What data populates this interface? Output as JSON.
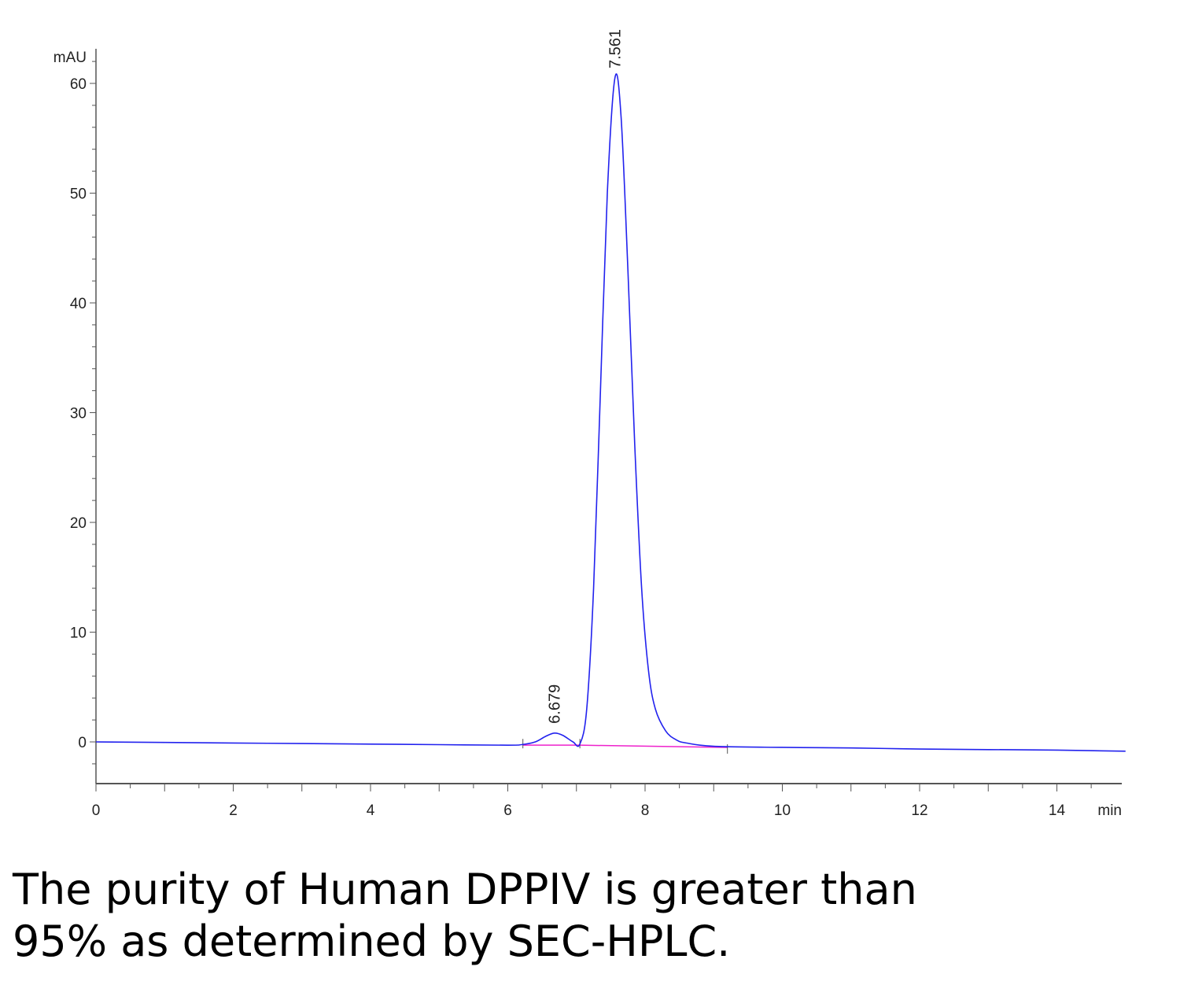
{
  "chart_data": {
    "type": "line",
    "xlabel": "min",
    "ylabel": "mAU",
    "xlim": [
      0,
      15
    ],
    "ylim": [
      -4,
      62
    ],
    "x_ticks": [
      "0",
      "2",
      "4",
      "6",
      "8",
      "10",
      "12",
      "14"
    ],
    "y_ticks": [
      "0",
      "10",
      "20",
      "30",
      "40",
      "50",
      "60"
    ],
    "grid": false,
    "colors": {
      "signal": "#2222ee",
      "baseline": "#ee22cc",
      "axis": "#555555"
    },
    "peaks": [
      {
        "label": "6.679",
        "x": 6.679,
        "y": 0.8
      },
      {
        "label": "7.561",
        "x": 7.561,
        "y": 60.5
      }
    ],
    "series": [
      {
        "x": [
          0,
          1,
          2,
          3,
          4,
          5,
          6,
          6.2,
          6.4,
          6.55,
          6.679,
          6.8,
          6.95,
          7.05,
          7.15,
          7.25,
          7.35,
          7.45,
          7.561,
          7.65,
          7.75,
          7.85,
          7.95,
          8.05,
          8.15,
          8.3,
          8.45,
          8.6,
          9,
          10,
          11,
          12,
          13,
          14,
          15
        ],
        "y": [
          0.0,
          -0.05,
          -0.1,
          -0.15,
          -0.2,
          -0.25,
          -0.3,
          -0.25,
          0.0,
          0.5,
          0.8,
          0.6,
          0.0,
          -0.2,
          3.0,
          14.0,
          32.0,
          50.0,
          60.5,
          57.0,
          43.0,
          27.0,
          14.0,
          6.5,
          3.0,
          1.0,
          0.2,
          -0.1,
          -0.4,
          -0.5,
          -0.55,
          -0.65,
          -0.7,
          -0.75,
          -0.85
        ]
      }
    ],
    "baseline_segments": [
      {
        "x": [
          6.22,
          7.05
        ],
        "y": [
          -0.3,
          -0.3
        ]
      },
      {
        "x": [
          7.05,
          9.2
        ],
        "y": [
          -0.3,
          -0.5
        ]
      }
    ]
  },
  "caption": {
    "line1": "The purity of Human DPPIV is greater than",
    "line2": "95% as determined by SEC-HPLC."
  }
}
